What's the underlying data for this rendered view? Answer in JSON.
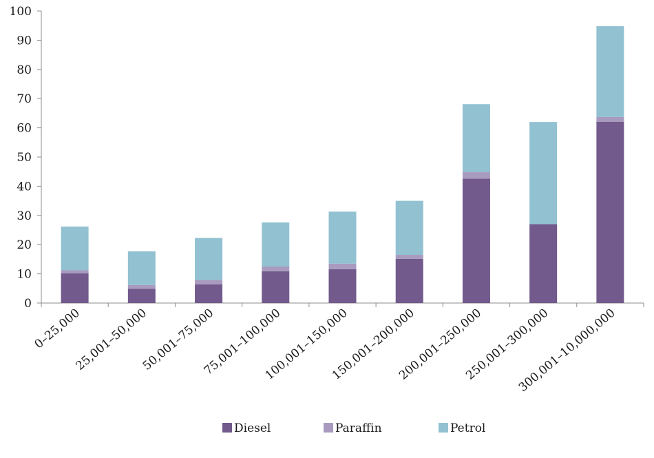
{
  "chart_data": {
    "type": "bar",
    "stacked": true,
    "categories": [
      "0–25,000",
      "25,001–50,000",
      "50,001–75,000",
      "75,001–100,000",
      "100,001–150,000",
      "150,001–200,000",
      "200,001–250,000",
      "250,001–300,000",
      "300,001–10,000,000"
    ],
    "series": [
      {
        "name": "Diesel",
        "color": "#725A8C",
        "values": [
          10.2,
          4.9,
          6.4,
          10.9,
          11.6,
          15.1,
          42.6,
          27.0,
          62.1
        ]
      },
      {
        "name": "Paraffin",
        "color": "#A99BBF",
        "values": [
          1.0,
          1.3,
          1.5,
          1.6,
          1.9,
          1.4,
          2.2,
          0.0,
          1.6
        ]
      },
      {
        "name": "Petrol",
        "color": "#92C1D1",
        "values": [
          15.0,
          11.5,
          14.4,
          15.1,
          17.8,
          18.5,
          23.3,
          35.0,
          31.1
        ]
      }
    ],
    "title": "",
    "xlabel": "",
    "ylabel": "",
    "ylim": [
      0,
      100
    ],
    "yticks": [
      0,
      10,
      20,
      30,
      40,
      50,
      60,
      70,
      80,
      90,
      100
    ],
    "grid": false,
    "legend": "bottom-center"
  }
}
